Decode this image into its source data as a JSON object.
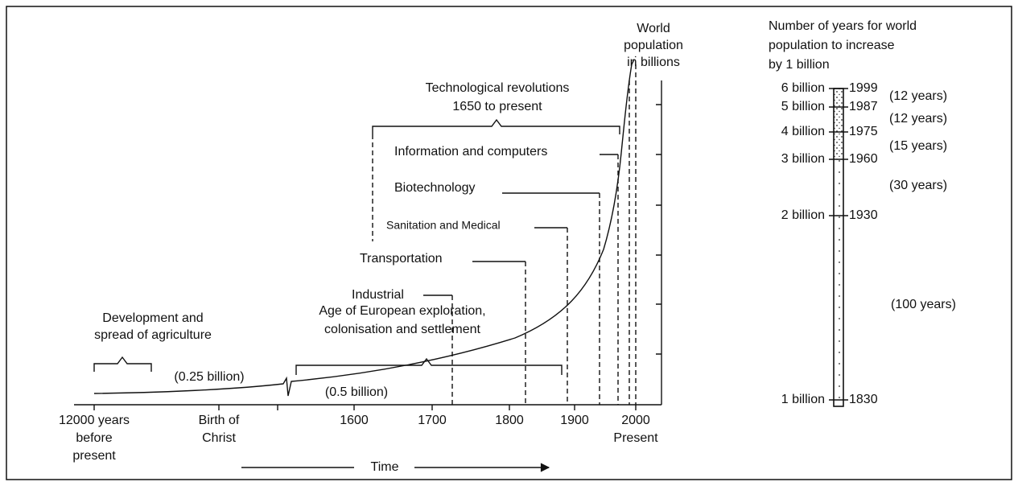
{
  "timeline": {
    "axis_title": [
      "World",
      "population",
      "in billions"
    ],
    "revolutions": [
      "Technological revolutions",
      "1650 to present"
    ],
    "eras": [
      "Information and computers",
      "Biotechnology",
      "Sanitation and Medical",
      "Transportation",
      "Industrial"
    ],
    "exploration": [
      "Age of European exploration,",
      "colonisation and settlement"
    ],
    "agriculture": [
      "Development and",
      "spread of agriculture"
    ],
    "population_labels": [
      "(0.25 billion)",
      "(0.5 billion)"
    ],
    "x_labels": [
      [
        "12000 years",
        "before",
        "present"
      ],
      [
        "Birth of",
        "Christ"
      ],
      [
        "1600"
      ],
      [
        "1700"
      ],
      [
        "1800"
      ],
      [
        "1900"
      ],
      [
        "2000",
        "Present"
      ]
    ],
    "time_label": "Time"
  },
  "increase": {
    "title": [
      "Number of years for world",
      "population to increase",
      "by 1 billion"
    ],
    "milestones": [
      {
        "population": "6 billion",
        "year": "1999"
      },
      {
        "population": "5 billion",
        "year": "1987"
      },
      {
        "population": "4 billion",
        "year": "1975"
      },
      {
        "population": "3 billion",
        "year": "1960"
      },
      {
        "population": "2 billion",
        "year": "1930"
      },
      {
        "population": "1 billion",
        "year": "1830"
      }
    ],
    "intervals": [
      "(12 years)",
      "(12 years)",
      "(15 years)",
      "(30 years)",
      "(100 years)"
    ]
  }
}
